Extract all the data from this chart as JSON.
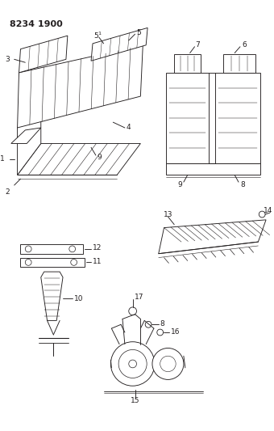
{
  "title": "8234 1900",
  "bg_color": "#ffffff",
  "line_color": "#231f20",
  "title_fontsize": 8,
  "label_fontsize": 6.5,
  "figsize": [
    3.4,
    5.33
  ],
  "dpi": 100
}
